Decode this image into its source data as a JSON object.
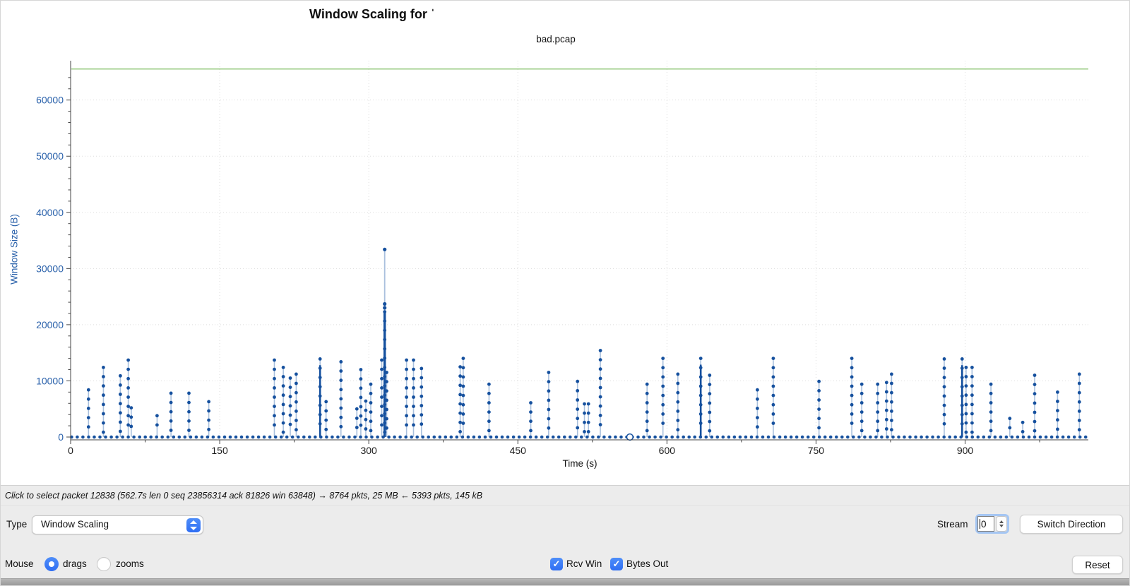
{
  "chart_data": {
    "type": "stem",
    "title": "Window Scaling for ˈ",
    "subtitle": "bad.pcap",
    "xlabel": "Time (s)",
    "ylabel": "Window Size (B)",
    "xlim": [
      0,
      1024
    ],
    "ylim": [
      0,
      67000
    ],
    "x_ticks": [
      0,
      150,
      300,
      450,
      600,
      750,
      900
    ],
    "y_ticks": [
      0,
      10000,
      20000,
      30000,
      40000,
      50000,
      60000
    ],
    "grid": "dotted",
    "rcv_win": {
      "label": "Rcv Win",
      "kind": "hline",
      "value": 65535,
      "color": "#9ccd87"
    },
    "bytes_out": {
      "label": "Bytes Out",
      "kind": "stems",
      "dot_color": "#15509e",
      "stem_color": "#a9c0dd",
      "dot_gap": 1650,
      "baseline": {
        "start": 1,
        "end": 1022,
        "step": 5.7,
        "value": 0
      },
      "spikes": [
        [
          18,
          8400
        ],
        [
          33,
          12400
        ],
        [
          50,
          10900
        ],
        [
          58,
          13700
        ],
        [
          61,
          5200
        ],
        [
          87,
          3800
        ],
        [
          101,
          7800
        ],
        [
          119,
          7800
        ],
        [
          139,
          6300
        ],
        [
          205,
          13700
        ],
        [
          214,
          12400
        ],
        [
          221,
          10500
        ],
        [
          227,
          11200
        ],
        [
          251,
          13900
        ],
        [
          257,
          6300
        ],
        [
          272,
          13400
        ],
        [
          288,
          5000
        ],
        [
          292,
          12000
        ],
        [
          297,
          6400
        ],
        [
          302,
          9400
        ],
        [
          313,
          13700
        ],
        [
          318,
          11500
        ],
        [
          338,
          13700
        ],
        [
          345,
          13700
        ],
        [
          353,
          12200
        ],
        [
          392,
          12500
        ],
        [
          395,
          14000
        ],
        [
          421,
          9400
        ],
        [
          463,
          6100
        ],
        [
          481,
          11500
        ],
        [
          510,
          9900
        ],
        [
          517,
          5900
        ],
        [
          521,
          5900
        ],
        [
          533,
          15400
        ],
        [
          580,
          9400
        ],
        [
          596,
          14000
        ],
        [
          611,
          11200
        ],
        [
          634,
          14000
        ],
        [
          643,
          11000
        ],
        [
          691,
          8400
        ],
        [
          707,
          14000
        ],
        [
          753,
          9900
        ],
        [
          786,
          14000
        ],
        [
          796,
          9400
        ],
        [
          812,
          9400
        ],
        [
          821,
          9700
        ],
        [
          826,
          11200
        ],
        [
          879,
          13900
        ],
        [
          897,
          13900
        ],
        [
          901,
          12400
        ],
        [
          907,
          12400
        ],
        [
          926,
          9400
        ],
        [
          945,
          3300
        ],
        [
          958,
          2600
        ],
        [
          970,
          11000
        ],
        [
          993,
          8000
        ],
        [
          1015,
          11200
        ]
      ],
      "dense_t": [
        251,
        634,
        897
      ],
      "big_spike": {
        "t": 316,
        "peak": 33400,
        "cluster": [
          23700,
          23000
        ],
        "dense_to": 22300
      },
      "selected_point": {
        "t": 562.7,
        "v": 0
      }
    }
  },
  "status_bar": {
    "text": "Click to select packet 12838 (562.7s len 0 seq 23856314 ack 81826 win 63848) → 8764 pkts, 25 MB ← 5393 pkts, 145 kB"
  },
  "controls": {
    "type_label": "Type",
    "type_value": "Window Scaling",
    "stream_label": "Stream",
    "stream_value": "0",
    "switch_direction_label": "Switch Direction",
    "mouse_label": "Mouse",
    "radio_drags": {
      "label": "drags",
      "selected": true
    },
    "radio_zooms": {
      "label": "zooms",
      "selected": false
    },
    "checkbox_rcv_win": {
      "label": "Rcv Win",
      "checked": true
    },
    "checkbox_bytes_out": {
      "label": "Bytes Out",
      "checked": true
    },
    "reset_label": "Reset",
    "check_glyph": "✓"
  },
  "colors": {
    "accent_blue": "#3979f7",
    "dot_blue": "#15509e",
    "stem_light": "#a9c0dd",
    "rcv_win_green": "#9ccd87",
    "ytick_blue": "#2b62ab",
    "panel_gray": "#ececec"
  }
}
